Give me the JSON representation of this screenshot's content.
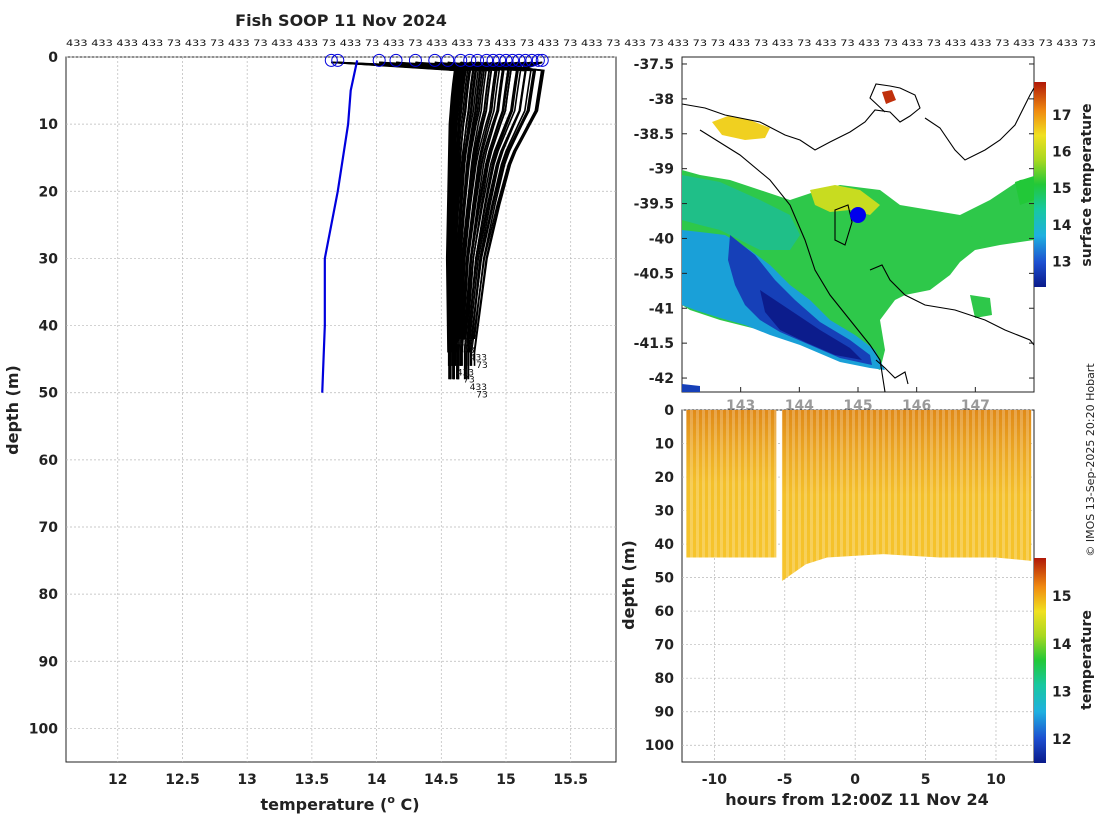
{
  "title": "Fish SOOP 11 Nov 2024",
  "id_strip": "433 433 433 433 73 433 73 433 73 433 433 73 433 73 433 73 433 433 73 433 73 433 73 433 73 433 73 433 73 73 433 73 433 73 433 73 433 73 433 73 433 433 73 433 73 433 73",
  "credit": "© IMOS 13-Sep-2025 20:20 Hobart",
  "colors": {
    "profile_black": "#000000",
    "profile_blue": "#0000dd",
    "grid": "#b8b8b8",
    "land_outline": "#000000"
  },
  "chart_data": [
    {
      "type": "line",
      "name": "profile-panel",
      "title": "Fish SOOP 11 Nov 2024",
      "xlabel": "temperature (° C)",
      "xlabel_parts": {
        "pre": "temperature (",
        "sup": "o",
        "post": " C)"
      },
      "ylabel": "depth (m)",
      "xlim": [
        11.6,
        15.85
      ],
      "ylim": [
        105,
        0
      ],
      "xticks": [
        12,
        12.5,
        13,
        13.5,
        14,
        14.5,
        15,
        15.5
      ],
      "xtick_labels": [
        "12",
        "12.5",
        "13",
        "13.5",
        "14",
        "14.5",
        "15",
        "15.5"
      ],
      "yticks": [
        0,
        10,
        20,
        30,
        40,
        50,
        60,
        70,
        80,
        90,
        100
      ],
      "ytick_labels": [
        "0",
        "10",
        "20",
        "30",
        "40",
        "50",
        "60",
        "70",
        "80",
        "90",
        "100"
      ],
      "series": [
        {
          "name": "reference profile",
          "color": "#0000dd",
          "x": [
            13.85,
            13.8,
            13.78,
            13.7,
            13.6,
            13.6,
            13.59,
            13.58
          ],
          "y": [
            0.5,
            5,
            10,
            20,
            30,
            40,
            45,
            50
          ]
        },
        {
          "name": "fishing profiles (envelope left)",
          "color": "#000000",
          "x": [
            14.62,
            14.6,
            14.58,
            14.57,
            14.56,
            14.57
          ],
          "y": [
            2,
            5,
            10,
            20,
            30,
            44
          ]
        },
        {
          "name": "fishing profiles (envelope right)",
          "color": "#000000",
          "x": [
            15.3,
            15.25,
            15.05,
            14.95,
            14.85,
            14.75
          ],
          "y": [
            2,
            8,
            15,
            22,
            30,
            44
          ]
        }
      ],
      "surface_markers_x": [
        13.65,
        13.7,
        14.02,
        14.15,
        14.3,
        14.45,
        14.55,
        14.65,
        14.72,
        14.78,
        14.85,
        14.9,
        14.95,
        15.0,
        15.05,
        15.1,
        15.15,
        15.2,
        15.25,
        15.28
      ],
      "bottom_depth_labels": [
        "433",
        "73",
        "433",
        "73",
        "433",
        "73",
        "433",
        "73"
      ]
    },
    {
      "type": "heatmap",
      "name": "sst-map",
      "ylim": [
        -42.2,
        -37.4
      ],
      "yticks": [
        -37.5,
        -38,
        -38.5,
        -39,
        -39.5,
        -40,
        -40.5,
        -41,
        -41.5,
        -42
      ],
      "ytick_labels": [
        "-37.5",
        "-38",
        "-38.5",
        "-39",
        "-39.5",
        "-40",
        "-40.5",
        "-41",
        "-41.5",
        "-42"
      ],
      "xtick_labels_partial": [
        "143",
        "144",
        "145",
        "146",
        "147"
      ],
      "colorbar_label": "surface temperature",
      "colorbar_range": [
        12.3,
        17.9
      ],
      "colorbar_ticks": [
        13,
        14,
        15,
        16,
        17
      ],
      "colorbar_tick_labels": [
        "13",
        "14",
        "15",
        "16",
        "17"
      ],
      "marker": {
        "label": "vessel position",
        "color": "#0000ee"
      }
    },
    {
      "type": "heatmap",
      "name": "depth-time-section",
      "xlabel": "hours from 12:00Z 11 Nov 24",
      "ylabel": "depth (m)",
      "xlim": [
        -12.3,
        12.7
      ],
      "ylim": [
        105,
        0
      ],
      "xticks": [
        -10,
        -5,
        0,
        5,
        10
      ],
      "xtick_labels": [
        "-10",
        "-5",
        "0",
        "5",
        "10"
      ],
      "yticks": [
        0,
        10,
        20,
        30,
        40,
        50,
        60,
        70,
        80,
        90,
        100
      ],
      "ytick_labels": [
        "0",
        "10",
        "20",
        "30",
        "40",
        "50",
        "60",
        "70",
        "80",
        "90",
        "100"
      ],
      "data_range_hours": [
        -12,
        12.5
      ],
      "gap_hours": [
        -5.6,
        -5.2
      ],
      "bottom_depth": [
        {
          "h": -12,
          "d": 44
        },
        {
          "h": -6,
          "d": 44
        },
        {
          "h": -5.2,
          "d": 51
        },
        {
          "h": -3.5,
          "d": 46
        },
        {
          "h": -2,
          "d": 44
        },
        {
          "h": 2,
          "d": 43
        },
        {
          "h": 6,
          "d": 44
        },
        {
          "h": 10,
          "d": 44
        },
        {
          "h": 12.5,
          "d": 45
        }
      ],
      "colorbar_label": "temperature",
      "colorbar_range": [
        11.5,
        15.8
      ],
      "colorbar_ticks": [
        12,
        13,
        14,
        15
      ],
      "colorbar_tick_labels": [
        "12",
        "13",
        "14",
        "15"
      ]
    }
  ]
}
